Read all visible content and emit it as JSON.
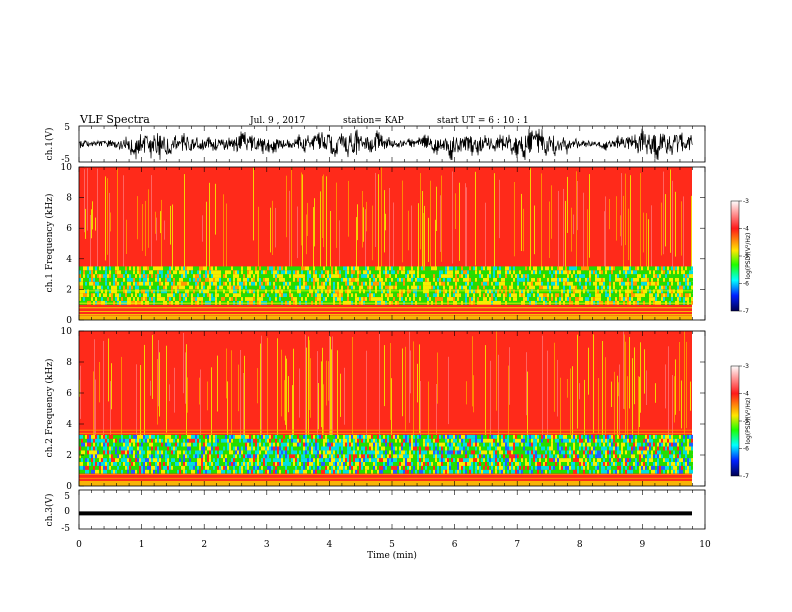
{
  "header": {
    "title": "VLF Spectra",
    "date": "Jul. 9 , 2017",
    "station": "station= KAP",
    "start": "start UT = 6 : 10 : 1"
  },
  "chart_data": [
    {
      "id": "ch1-waveform",
      "type": "line",
      "ylabel": "ch.1(V)",
      "ylim": [
        -5,
        5
      ],
      "yticks": [
        "5",
        "-5"
      ],
      "xlim": [
        0,
        10
      ],
      "description_values": "dense noisy waveform between about -4 and 4 V over 0-9.8 min"
    },
    {
      "id": "ch1-spectrogram",
      "type": "heatmap",
      "ylabel": "ch.1 Frequency (kHz)",
      "ylim": [
        0,
        10
      ],
      "yticks": [
        "0",
        "2",
        "4",
        "6",
        "8",
        "10"
      ],
      "xlim": [
        0,
        10
      ],
      "colorbar": {
        "label": "log(PSD)(V²/Hz)",
        "range": [
          -7,
          -3
        ],
        "ticks": [
          "-3",
          "-4",
          "-5",
          "-6",
          "-7"
        ]
      }
    },
    {
      "id": "ch2-spectrogram",
      "type": "heatmap",
      "ylabel": "ch.2 Frequency (kHz)",
      "ylim": [
        0,
        10
      ],
      "yticks": [
        "0",
        "2",
        "4",
        "6",
        "8",
        "10"
      ],
      "xlim": [
        0,
        10
      ],
      "colorbar": {
        "label": "log(PSD)(V²/Hz)",
        "range": [
          -7,
          -3
        ],
        "ticks": [
          "-3",
          "-4",
          "-5",
          "-6",
          "-7"
        ]
      }
    },
    {
      "id": "ch3-waveform",
      "type": "line",
      "ylabel": "ch.3(V)",
      "ylim": [
        -5,
        5
      ],
      "yticks": [
        "5",
        "0",
        "-5"
      ],
      "xlim": [
        0,
        10
      ],
      "xlabel": "Time (min)",
      "xticks": [
        "0",
        "1",
        "2",
        "3",
        "4",
        "5",
        "6",
        "7",
        "8",
        "9",
        "10"
      ],
      "values_constant": -1.0
    }
  ],
  "colors": {
    "red": "#ff2a1a",
    "orange": "#ff9a00",
    "yellow": "#f4f000",
    "green": "#22e000",
    "cyan": "#00e0e0",
    "blue": "#0000ff",
    "black": "#000000"
  }
}
